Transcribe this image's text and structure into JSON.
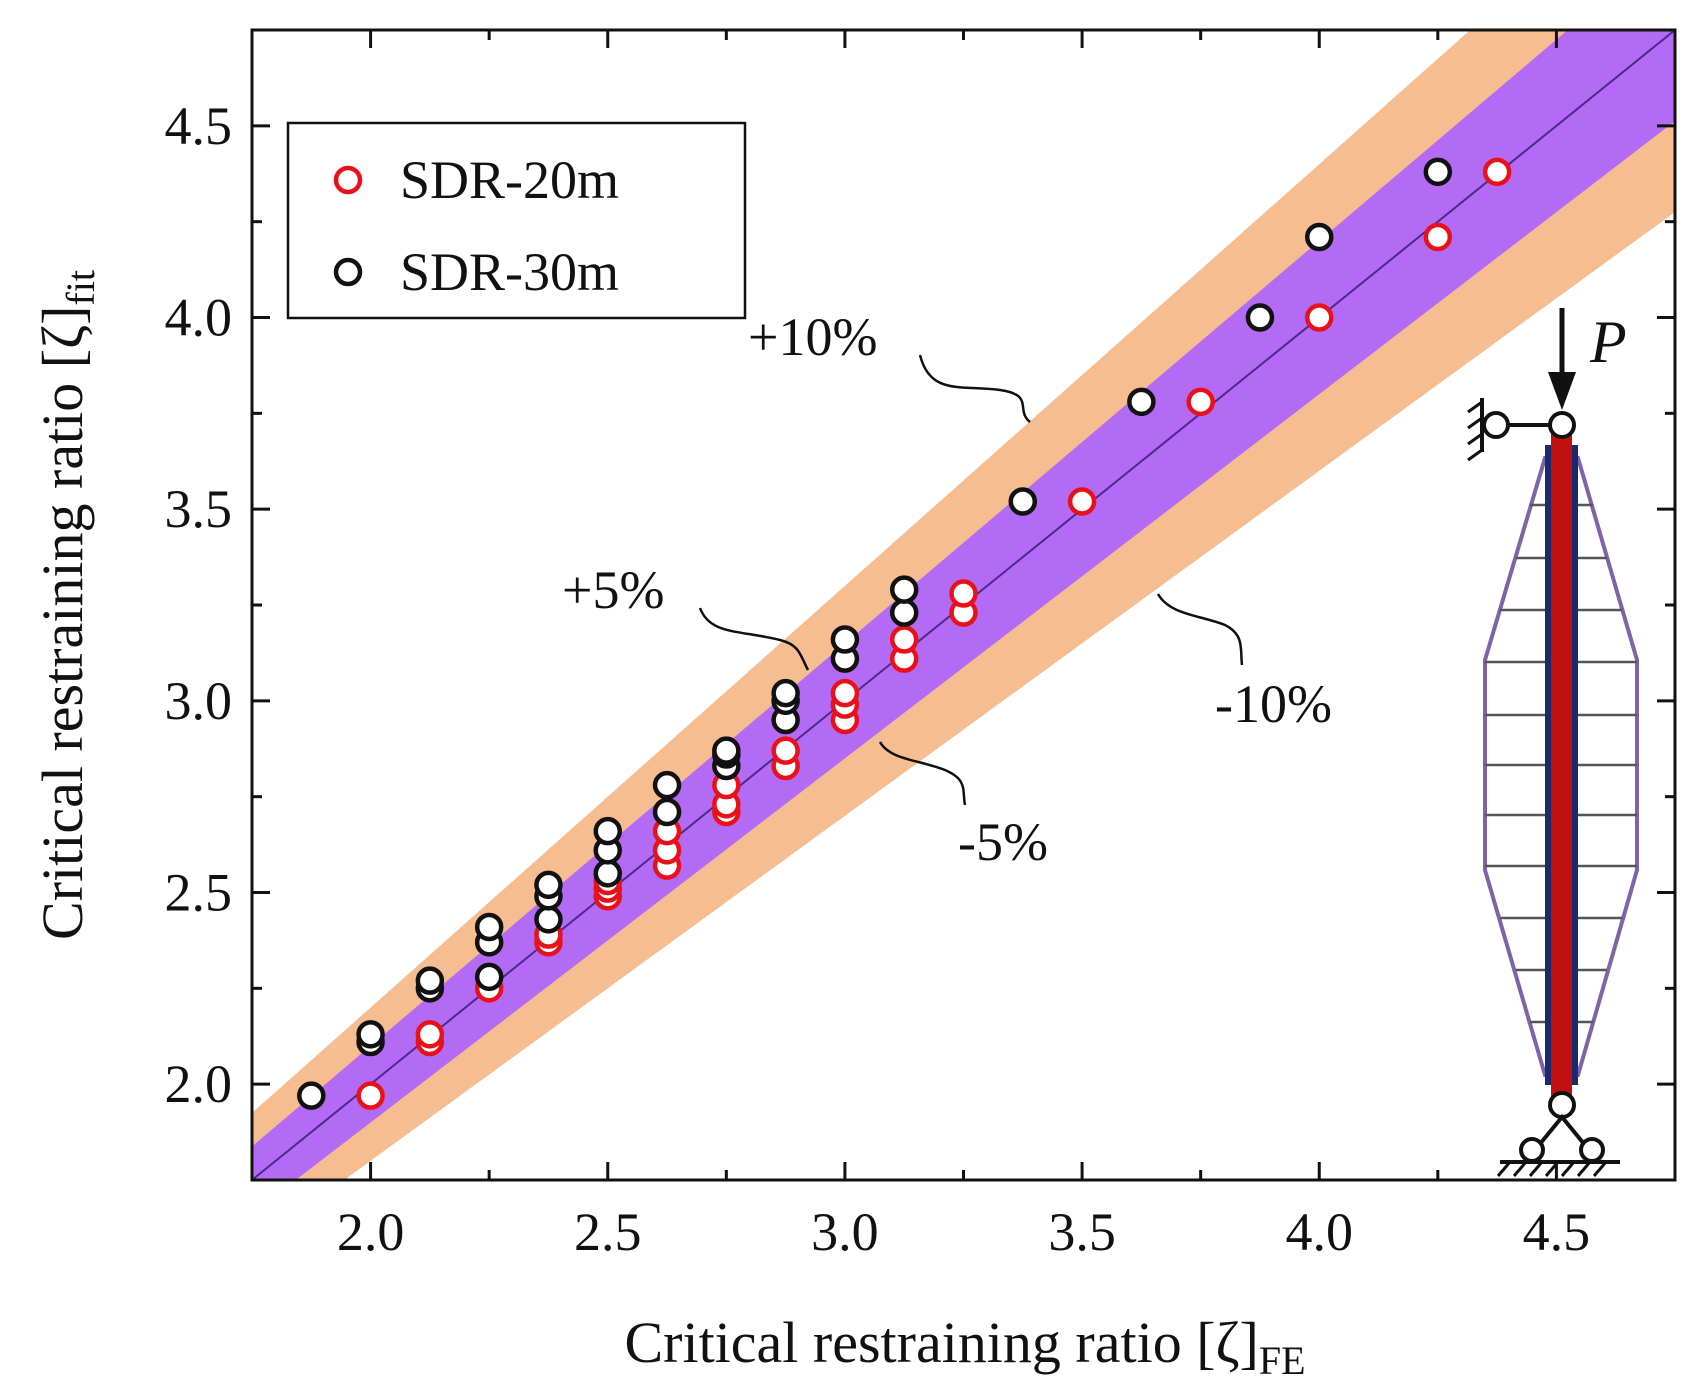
{
  "chart_data": {
    "type": "scatter",
    "xlabel": "Critical restraining ratio [ζ]",
    "xlabel_sub": "FE",
    "ylabel": "Critical restraining ratio [ζ]",
    "ylabel_sub": "fit",
    "xlim": [
      1.75,
      4.75
    ],
    "ylim": [
      1.75,
      4.75
    ],
    "xticks": [
      "2.0",
      "2.5",
      "3.0",
      "3.5",
      "4.0",
      "4.5"
    ],
    "yticks": [
      "2.0",
      "2.5",
      "3.0",
      "3.5",
      "4.0",
      "4.5"
    ],
    "bands": [
      {
        "name": "±10%",
        "ratio": 0.1,
        "color": "#f5bd90"
      },
      {
        "name": "±5%",
        "ratio": 0.05,
        "color": "#b36bf5"
      }
    ],
    "reference_line": {
      "name": "y = x",
      "color": "#4a2a8a"
    },
    "series": [
      {
        "name": "SDR-20m",
        "color": "#e8111a",
        "points": [
          [
            2.0,
            1.97
          ],
          [
            2.125,
            2.11
          ],
          [
            2.125,
            2.13
          ],
          [
            2.25,
            2.25
          ],
          [
            2.375,
            2.37
          ],
          [
            2.375,
            2.39
          ],
          [
            2.5,
            2.49
          ],
          [
            2.5,
            2.51
          ],
          [
            2.5,
            2.53
          ],
          [
            2.625,
            2.57
          ],
          [
            2.625,
            2.61
          ],
          [
            2.625,
            2.66
          ],
          [
            2.75,
            2.71
          ],
          [
            2.75,
            2.73
          ],
          [
            2.75,
            2.78
          ],
          [
            2.875,
            2.83
          ],
          [
            2.875,
            2.87
          ],
          [
            3.0,
            2.95
          ],
          [
            3.0,
            2.99
          ],
          [
            3.0,
            3.02
          ],
          [
            3.125,
            3.11
          ],
          [
            3.125,
            3.16
          ],
          [
            3.25,
            3.23
          ],
          [
            3.25,
            3.28
          ],
          [
            3.5,
            3.52
          ],
          [
            3.75,
            3.78
          ],
          [
            4.0,
            4.0
          ],
          [
            4.25,
            4.21
          ],
          [
            4.375,
            4.38
          ]
        ]
      },
      {
        "name": "SDR-30m",
        "color": "#111111",
        "points": [
          [
            1.875,
            1.97
          ],
          [
            2.0,
            2.11
          ],
          [
            2.0,
            2.13
          ],
          [
            2.125,
            2.25
          ],
          [
            2.125,
            2.27
          ],
          [
            2.25,
            2.28
          ],
          [
            2.25,
            2.37
          ],
          [
            2.25,
            2.41
          ],
          [
            2.375,
            2.43
          ],
          [
            2.375,
            2.49
          ],
          [
            2.375,
            2.52
          ],
          [
            2.5,
            2.55
          ],
          [
            2.5,
            2.61
          ],
          [
            2.5,
            2.66
          ],
          [
            2.625,
            2.71
          ],
          [
            2.625,
            2.78
          ],
          [
            2.75,
            2.83
          ],
          [
            2.75,
            2.86
          ],
          [
            2.75,
            2.87
          ],
          [
            2.875,
            2.95
          ],
          [
            2.875,
            3.0
          ],
          [
            2.875,
            3.02
          ],
          [
            3.0,
            3.11
          ],
          [
            3.0,
            3.16
          ],
          [
            3.125,
            3.23
          ],
          [
            3.125,
            3.29
          ],
          [
            3.375,
            3.52
          ],
          [
            3.625,
            3.78
          ],
          [
            3.875,
            4.0
          ],
          [
            4.0,
            4.21
          ],
          [
            4.25,
            4.38
          ]
        ]
      }
    ],
    "annotations": [
      "+10%",
      "+5%",
      "-5%",
      "-10%"
    ],
    "legend_location": "top-left"
  },
  "inset": {
    "load_label": "P"
  }
}
